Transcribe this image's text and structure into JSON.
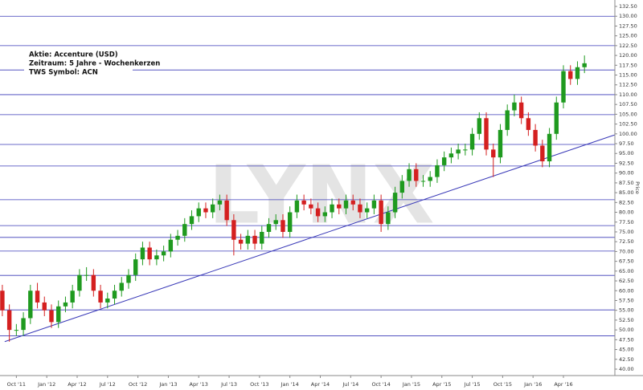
{
  "chart_data": {
    "type": "candlestick",
    "annotations": [
      "Aktie: Accenture (USD)",
      "Zeitraum: 5 Jahre - Wochenkerzen",
      "TWS Symbol: ACN"
    ],
    "watermark": "LYNX",
    "ylabel": "Price",
    "up_color": "#1f9a1f",
    "down_color": "#d42020",
    "line_color": "#3a3ab8",
    "xlim": [
      0,
      263
    ],
    "ylim": [
      38.36,
      134.14
    ],
    "xticks": [
      {
        "value": 7,
        "label": "Oct '11"
      },
      {
        "value": 20,
        "label": "Jan '12"
      },
      {
        "value": 33,
        "label": "Apr '12"
      },
      {
        "value": 46,
        "label": "Jul '12"
      },
      {
        "value": 59,
        "label": "Oct '12"
      },
      {
        "value": 72,
        "label": "Jan '13"
      },
      {
        "value": 85,
        "label": "Apr '13"
      },
      {
        "value": 98,
        "label": "Jul '13"
      },
      {
        "value": 111,
        "label": "Oct '13"
      },
      {
        "value": 124,
        "label": "Jan '14"
      },
      {
        "value": 137,
        "label": "Apr '14"
      },
      {
        "value": 150,
        "label": "Jul '14"
      },
      {
        "value": 163,
        "label": "Oct '14"
      },
      {
        "value": 176,
        "label": "Jan '15"
      },
      {
        "value": 189,
        "label": "Apr '15"
      },
      {
        "value": 202,
        "label": "Jul '15"
      },
      {
        "value": 215,
        "label": "Oct '15"
      },
      {
        "value": 228,
        "label": "Jan '16"
      },
      {
        "value": 241,
        "label": "Apr '16"
      }
    ],
    "yticks": [
      {
        "value": 40,
        "label": "40.00"
      },
      {
        "value": 42.5,
        "label": "42.50"
      },
      {
        "value": 45,
        "label": "45.00"
      },
      {
        "value": 47.5,
        "label": "47.50"
      },
      {
        "value": 50,
        "label": "50.00"
      },
      {
        "value": 52.5,
        "label": "52.50"
      },
      {
        "value": 55,
        "label": "55.00"
      },
      {
        "value": 57.5,
        "label": "57.50"
      },
      {
        "value": 60,
        "label": "60.00"
      },
      {
        "value": 62.5,
        "label": "62.50"
      },
      {
        "value": 65,
        "label": "65.00"
      },
      {
        "value": 67.5,
        "label": "67.50"
      },
      {
        "value": 70,
        "label": "70.00"
      },
      {
        "value": 72.5,
        "label": "72.50"
      },
      {
        "value": 75,
        "label": "75.00"
      },
      {
        "value": 77.5,
        "label": "77.50"
      },
      {
        "value": 80,
        "label": "80.00"
      },
      {
        "value": 82.5,
        "label": "82.50"
      },
      {
        "value": 85,
        "label": "85.00"
      },
      {
        "value": 87.5,
        "label": "87.50"
      },
      {
        "value": 90,
        "label": "90.00"
      },
      {
        "value": 92.5,
        "label": "92.50"
      },
      {
        "value": 95,
        "label": "95.00"
      },
      {
        "value": 97.5,
        "label": "97.50"
      },
      {
        "value": 100,
        "label": "100.00"
      },
      {
        "value": 102.5,
        "label": "102.50"
      },
      {
        "value": 105,
        "label": "105.00"
      },
      {
        "value": 107.5,
        "label": "107.50"
      },
      {
        "value": 110,
        "label": "110.00"
      },
      {
        "value": 112.5,
        "label": "112.50"
      },
      {
        "value": 115,
        "label": "115.00"
      },
      {
        "value": 117.5,
        "label": "117.50"
      },
      {
        "value": 120,
        "label": "120.00"
      },
      {
        "value": 122.5,
        "label": "122.50"
      },
      {
        "value": 125,
        "label": "125.00"
      },
      {
        "value": 127.5,
        "label": "127.50"
      },
      {
        "value": 130,
        "label": "130.00"
      },
      {
        "value": 132.5,
        "label": "132.50"
      }
    ],
    "horizontal_lines": [
      130,
      122.5,
      116.3,
      110,
      104.9,
      97.3,
      91.8,
      83.2,
      76.6,
      73.6,
      70.1,
      63.9,
      55.1,
      48.5
    ],
    "trendline": {
      "x": [
        2,
        263
      ],
      "y": [
        47,
        99.75
      ]
    },
    "x": [
      1,
      4,
      7,
      10,
      13,
      16,
      19,
      22,
      25,
      28,
      31,
      34,
      37,
      40,
      43,
      46,
      49,
      52,
      55,
      58,
      61,
      64,
      67,
      70,
      73,
      76,
      79,
      82,
      85,
      88,
      91,
      94,
      97,
      100,
      103,
      106,
      109,
      112,
      115,
      118,
      121,
      124,
      127,
      130,
      133,
      136,
      139,
      142,
      145,
      148,
      151,
      154,
      157,
      160,
      163,
      166,
      169,
      172,
      175,
      178,
      181,
      184,
      187,
      190,
      193,
      196,
      199,
      202,
      205,
      208,
      211,
      214,
      217,
      220,
      223,
      226,
      229,
      232,
      235,
      238,
      241,
      244,
      247,
      250
    ],
    "open": [
      60,
      55,
      50,
      50,
      53,
      60,
      57,
      55,
      52,
      56,
      57,
      60,
      64,
      64,
      60,
      57,
      58,
      60,
      62,
      64,
      68,
      71,
      68,
      69,
      70,
      73,
      74,
      77,
      79,
      81,
      80,
      82,
      83,
      78,
      73,
      72,
      74,
      72,
      75,
      77,
      78,
      75,
      80,
      83,
      82,
      81,
      79,
      80,
      82,
      81,
      83,
      82,
      80,
      81,
      83,
      77,
      80,
      85,
      88,
      91,
      88,
      88,
      89,
      92,
      94,
      95,
      96,
      96,
      100,
      104,
      96,
      94,
      101,
      106,
      108,
      104,
      101,
      97,
      93,
      100,
      108,
      116,
      114,
      117
    ],
    "high": [
      61.5,
      56.5,
      51.5,
      54.5,
      61.5,
      62,
      58.5,
      56.5,
      57.5,
      58.5,
      61.5,
      65.5,
      66,
      65.5,
      61.5,
      59.5,
      61.5,
      63.5,
      65.5,
      69.5,
      72.5,
      72.5,
      70.5,
      71.5,
      74.5,
      75.5,
      78.5,
      80.5,
      82.5,
      82.5,
      83.5,
      84.5,
      84.5,
      79.5,
      74.5,
      75.5,
      75.5,
      76.5,
      78.5,
      79.5,
      79.5,
      81.5,
      84.5,
      84.5,
      83.5,
      82.5,
      81.5,
      83.5,
      83.5,
      84.5,
      84.5,
      83.5,
      82.5,
      84.5,
      84.5,
      81.5,
      86.5,
      89.5,
      92.5,
      92.5,
      89.5,
      90.5,
      93.5,
      95.5,
      96.5,
      97.5,
      97.5,
      101.5,
      105.5,
      105.5,
      97.5,
      102.5,
      107.5,
      110,
      109.5,
      105.5,
      102.5,
      98.5,
      101.5,
      109.5,
      117.5,
      117.5,
      118.5,
      120
    ],
    "low": [
      53.5,
      47,
      48.5,
      48.5,
      51.5,
      55.5,
      53.5,
      50.5,
      50.5,
      54.5,
      55.5,
      58.5,
      62.5,
      58.5,
      55.5,
      55.5,
      56.5,
      58.5,
      60.5,
      62.5,
      66.5,
      66.5,
      66.5,
      67.5,
      68.5,
      71.5,
      72.5,
      75.5,
      77.5,
      78.5,
      78.5,
      80.5,
      76.5,
      69,
      70.5,
      70.5,
      70.5,
      70.5,
      73.5,
      75.5,
      73.5,
      73.5,
      78.5,
      80.5,
      79.5,
      77.5,
      77.5,
      78.5,
      79.5,
      79.5,
      80.5,
      78.5,
      78.5,
      79.5,
      75,
      75.5,
      78.5,
      83.5,
      86.5,
      86.5,
      86.5,
      86.5,
      87.5,
      90.5,
      92.5,
      93.5,
      94.5,
      94.5,
      98.5,
      94.5,
      89,
      92.5,
      99.5,
      104.5,
      102.5,
      99.5,
      95.5,
      91.5,
      91.5,
      98.5,
      106.5,
      112.5,
      112.5,
      115.5
    ],
    "close": [
      55,
      50,
      50,
      53,
      60,
      57,
      55,
      52,
      56,
      57,
      60,
      64,
      64,
      60,
      57,
      58,
      60,
      62,
      64,
      68,
      71,
      68,
      69,
      70,
      73,
      74,
      77,
      79,
      81,
      80,
      82,
      83,
      78,
      73,
      72,
      74,
      72,
      75,
      77,
      78,
      75,
      80,
      83,
      82,
      81,
      79,
      80,
      82,
      81,
      83,
      82,
      80,
      81,
      83,
      77,
      80,
      85,
      88,
      91,
      88,
      88,
      89,
      92,
      94,
      95,
      96,
      96,
      100,
      104,
      96,
      94,
      101,
      106,
      108,
      104,
      101,
      97,
      93,
      100,
      108,
      116,
      114,
      117,
      118
    ]
  }
}
